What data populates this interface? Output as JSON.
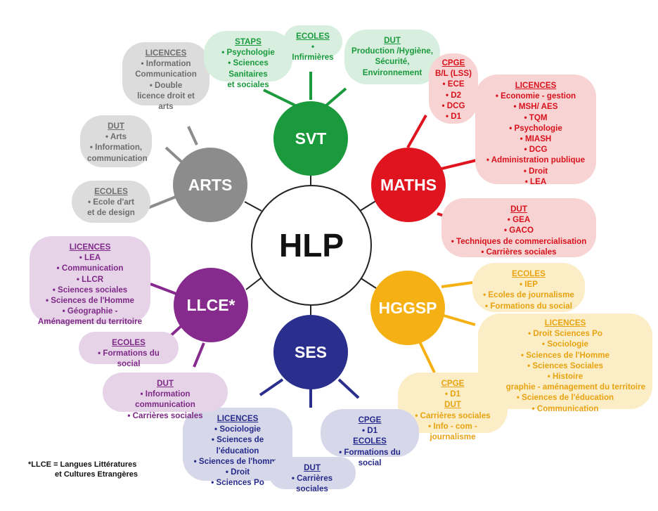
{
  "center": {
    "label": "HLP"
  },
  "nodes": [
    {
      "id": "svt",
      "label": "SVT",
      "color": "#1a9a3d"
    },
    {
      "id": "maths",
      "label": "MATHS",
      "color": "#e0141e"
    },
    {
      "id": "hggsp",
      "label": "HGGSP",
      "color": "#f5b014"
    },
    {
      "id": "ses",
      "label": "SES",
      "color": "#2a2e8c"
    },
    {
      "id": "llce",
      "label": "LLCE*",
      "color": "#862a8d"
    },
    {
      "id": "arts",
      "label": "ARTS",
      "color": "#8c8c8c"
    }
  ],
  "blobs": {
    "arts_licences": {
      "heading": "LICENCES",
      "items": [
        "• Information",
        "Communication",
        "• Double",
        "licence droit et arts"
      ]
    },
    "arts_dut": {
      "heading": "DUT",
      "items": [
        "• Arts",
        "• Information,",
        "communication"
      ]
    },
    "arts_ecoles": {
      "heading": "ECOLES",
      "items": [
        "• Ecole d'art",
        "et de design"
      ]
    },
    "svt_staps": {
      "heading": "STAPS",
      "items": [
        "• Psychologie",
        "• Sciences Sanitaires",
        "et sociales"
      ]
    },
    "svt_ecoles": {
      "heading": "ECOLES",
      "items": [
        "• Infirmières"
      ]
    },
    "svt_dut": {
      "heading": "DUT",
      "items": [
        "Production /Hygiène,",
        "Sécurité,",
        "Environnement"
      ]
    },
    "maths_cpge": {
      "heading": "CPGE",
      "items": [
        "B/L (LSS)",
        "• ECE",
        "• D2",
        "• DCG",
        "• D1"
      ]
    },
    "maths_licences": {
      "heading": "LICENCES",
      "items": [
        "• Economie - gestion",
        "• MSH/ AES",
        "• TQM",
        "• Psychologie",
        "• MIASH",
        "• DCG",
        "• Administration publique",
        "• Droit",
        "• LEA"
      ]
    },
    "maths_dut": {
      "heading": "DUT",
      "items": [
        "• GEA",
        "• GACO",
        "• Techniques de commercialisation",
        "• Carrières sociales"
      ]
    },
    "hggsp_ecoles": {
      "heading": "ECOLES",
      "items": [
        "• IEP",
        "• Ecoles de journalisme",
        "• Formations du social"
      ]
    },
    "hggsp_licences": {
      "heading": "LICENCES",
      "items": [
        "• Droit Sciences Po",
        "• Sociologie",
        "• Sciences de l'Homme",
        "• Sciences Sociales",
        "• Histoire",
        "• Géographie - aménagement du territoire",
        "• Sciences de l'éducation",
        "• Communication"
      ]
    },
    "hggsp_cpge": {
      "heading": "CPGE",
      "items": [
        "• D1"
      ],
      "heading2": "DUT",
      "items2": [
        "• Carrières sociales",
        "• Info - com - journalisme"
      ]
    },
    "ses_licences": {
      "heading": "LICENCES",
      "items": [
        "• Sociologie",
        "• Sciences de l'éducation",
        "• Sciences de l'homme",
        "• Droit",
        "• Sciences Po"
      ]
    },
    "ses_cpge": {
      "heading": "CPGE",
      "items": [
        "• D1"
      ],
      "heading2": "ECOLES",
      "items2": [
        "• Formations du social"
      ]
    },
    "ses_dut": {
      "heading": "DUT",
      "items": [
        "• Carrières sociales"
      ]
    },
    "llce_licences": {
      "heading": "LICENCES",
      "items": [
        "• LEA",
        "• Communication",
        "• LLCR",
        "• Sciences sociales",
        "• Sciences de l'Homme",
        "• Géographie -",
        "Aménagement du territoire"
      ]
    },
    "llce_ecoles": {
      "heading": "ECOLES",
      "items": [
        "• Formations du social"
      ]
    },
    "llce_dut": {
      "heading": "DUT",
      "items": [
        "• Information communication",
        "• Carrières sociales"
      ]
    }
  },
  "footnote": [
    "*LLCE = Langues Littératures",
    "et Cultures Etrangères"
  ]
}
